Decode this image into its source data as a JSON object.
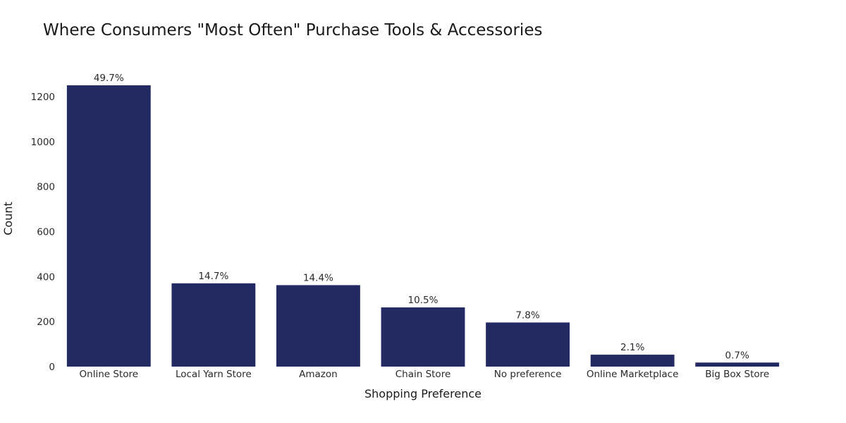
{
  "chart_data": {
    "type": "bar",
    "title": "Where Consumers \"Most Often\" Purchase Tools & Accessories",
    "xlabel": "Shopping Preference",
    "ylabel": "Count",
    "categories": [
      "Online Store",
      "Local Yarn Store",
      "Amazon",
      "Chain Store",
      "No preference",
      "Online Marketplace",
      "Big Box Store"
    ],
    "values": [
      1250,
      370,
      362,
      263,
      196,
      53,
      18
    ],
    "data_labels": [
      "49.7%",
      "14.7%",
      "14.4%",
      "10.5%",
      "7.8%",
      "2.1%",
      "0.7%"
    ],
    "y_ticks": [
      0,
      200,
      400,
      600,
      800,
      1000,
      1200
    ],
    "ylim": [
      0,
      1250
    ],
    "grid": false,
    "legend": "none",
    "bar_color": "#232a62"
  }
}
